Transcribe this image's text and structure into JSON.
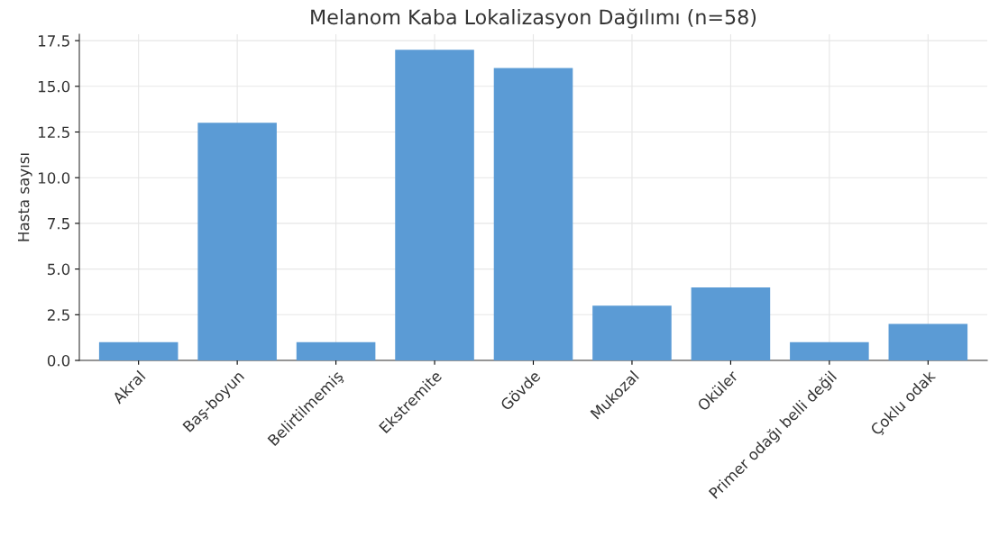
{
  "chart_data": {
    "type": "bar",
    "title": "Melanom Kaba Lokalizasyon Dağılımı (n=58)",
    "ylabel": "Hasta sayısı",
    "categories": [
      "Akral",
      "Baş-boyun",
      "Belirtilmemiş",
      "Ekstremite",
      "Gövde",
      "Mukozal",
      "Oküler",
      "Primer odağı belli değil",
      "Çoklu odak"
    ],
    "values": [
      1,
      13,
      1,
      17,
      16,
      3,
      4,
      1,
      2
    ],
    "color": "#5b9bd5",
    "ylim": [
      0,
      17.85
    ],
    "yticks": [
      {
        "value": 0,
        "label": "0.0"
      },
      {
        "value": 2.5,
        "label": "2.5"
      },
      {
        "value": 5,
        "label": "5.0"
      },
      {
        "value": 7.5,
        "label": "7.5"
      },
      {
        "value": 10,
        "label": "10.0"
      },
      {
        "value": 12.5,
        "label": "12.5"
      },
      {
        "value": 15,
        "label": "15.0"
      },
      {
        "value": 17.5,
        "label": "17.5"
      }
    ],
    "grid": true
  }
}
